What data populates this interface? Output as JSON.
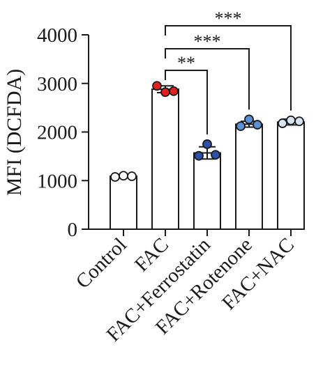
{
  "chart_data": {
    "type": "bar",
    "title": "",
    "xlabel": "",
    "ylabel": "MFI (DCFDA)",
    "ylim": [
      0,
      4000
    ],
    "yticks": [
      0,
      1000,
      2000,
      3000,
      4000
    ],
    "categories": [
      "Control",
      "FAC",
      "FAC+Ferrostatin",
      "FAC+Rotenone",
      "FAC+NAC"
    ],
    "values": [
      1090,
      2880,
      1570,
      2160,
      2205
    ],
    "errors": [
      35,
      70,
      125,
      60,
      60
    ],
    "points": [
      [
        1075,
        1100,
        1090
      ],
      [
        2950,
        2820,
        2840
      ],
      [
        1510,
        1750,
        1530
      ],
      [
        2120,
        2260,
        2150
      ],
      [
        2180,
        2240,
        2220
      ]
    ],
    "point_colors": [
      "#ffffff",
      "#e02020",
      "#2c4fa8",
      "#5b8fd6",
      "#d6e6f7"
    ],
    "significance": [
      {
        "from": 1,
        "to": 2,
        "label": "**"
      },
      {
        "from": 1,
        "to": 3,
        "label": "***"
      },
      {
        "from": 1,
        "to": 4,
        "label": "***"
      }
    ]
  }
}
